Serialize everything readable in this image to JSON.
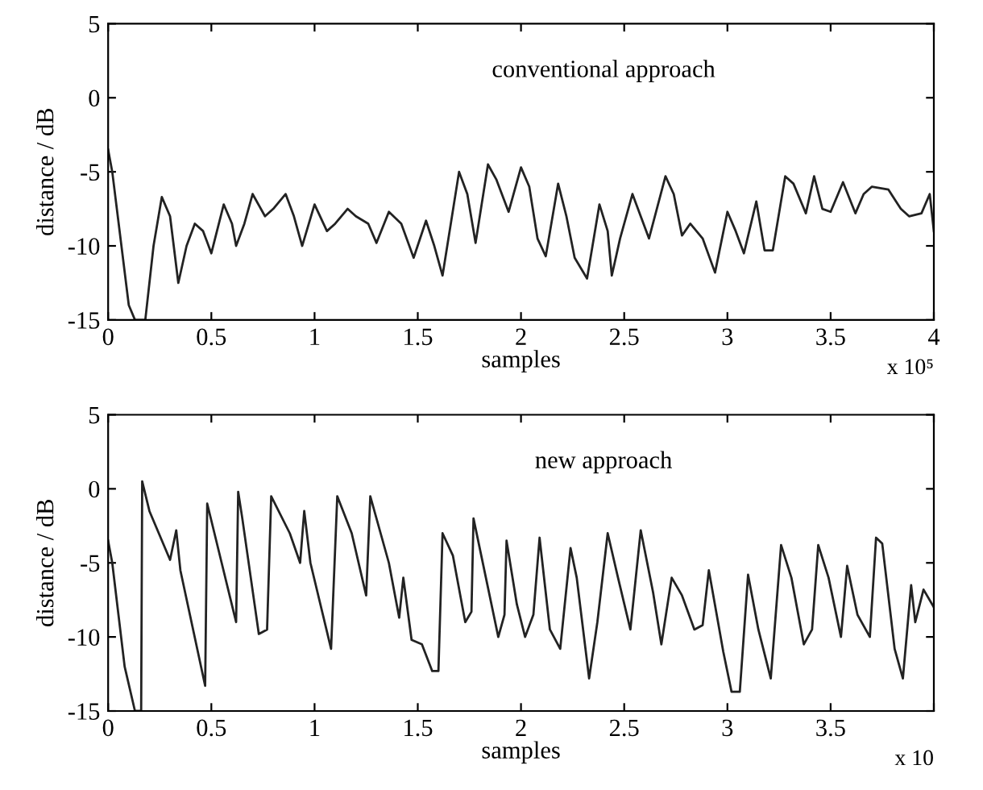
{
  "chart_data": [
    {
      "type": "line",
      "xlabel": "samples",
      "ylabel": "distance / dB",
      "annotations": [
        "conventional approach",
        "x 10⁵"
      ],
      "xlim": [
        0,
        4
      ],
      "ylim": [
        -15,
        5
      ],
      "xticks": [
        0,
        0.5,
        1,
        1.5,
        2,
        2.5,
        3,
        3.5,
        4
      ],
      "yticks": [
        -15,
        -10,
        -5,
        0,
        5
      ],
      "grid": false,
      "legend": false,
      "marker": "none",
      "line_style": "solid",
      "series": [
        {
          "color": "#222222",
          "x": [
            0,
            0.02,
            0.1,
            0.13,
            0.18,
            0.22,
            0.26,
            0.3,
            0.34,
            0.38,
            0.42,
            0.46,
            0.5,
            0.56,
            0.6,
            0.62,
            0.66,
            0.7,
            0.76,
            0.8,
            0.86,
            0.9,
            0.94,
            1.0,
            1.06,
            1.1,
            1.16,
            1.2,
            1.26,
            1.3,
            1.36,
            1.42,
            1.48,
            1.54,
            1.58,
            1.62,
            1.7,
            1.74,
            1.78,
            1.84,
            1.88,
            1.94,
            2.0,
            2.04,
            2.08,
            2.12,
            2.18,
            2.22,
            2.26,
            2.32,
            2.38,
            2.42,
            2.44,
            2.48,
            2.54,
            2.58,
            2.62,
            2.7,
            2.74,
            2.78,
            2.82,
            2.88,
            2.94,
            3.0,
            3.04,
            3.08,
            3.14,
            3.18,
            3.22,
            3.28,
            3.32,
            3.38,
            3.42,
            3.46,
            3.5,
            3.56,
            3.62,
            3.66,
            3.7,
            3.78,
            3.84,
            3.88,
            3.94,
            3.98,
            4.0
          ],
          "values": [
            -3.5,
            -5,
            -14,
            -15,
            -15,
            -10,
            -6.7,
            -8,
            -12.5,
            -10,
            -8.5,
            -9,
            -10.5,
            -7.2,
            -8.5,
            -10,
            -8.5,
            -6.5,
            -8,
            -7.5,
            -6.5,
            -8,
            -10,
            -7.2,
            -9,
            -8.5,
            -7.5,
            -8,
            -8.5,
            -9.8,
            -7.7,
            -8.5,
            -10.8,
            -8.3,
            -10,
            -12,
            -5,
            -6.5,
            -9.8,
            -4.5,
            -5.5,
            -7.7,
            -4.7,
            -6,
            -9.5,
            -10.7,
            -5.8,
            -8,
            -10.8,
            -12.2,
            -7.2,
            -9,
            -12,
            -9.5,
            -6.5,
            -8,
            -9.5,
            -5.3,
            -6.5,
            -9.3,
            -8.5,
            -9.5,
            -11.8,
            -7.7,
            -9,
            -10.5,
            -7,
            -10.3,
            -10.3,
            -5.3,
            -5.8,
            -7.8,
            -5.3,
            -7.5,
            -7.7,
            -5.7,
            -7.8,
            -6.5,
            -6,
            -6.2,
            -7.5,
            -8,
            -7.8,
            -6.5,
            -9
          ]
        }
      ]
    },
    {
      "type": "line",
      "xlabel": "samples",
      "ylabel": "distance / dB",
      "annotations": [
        "new approach",
        "x 10"
      ],
      "xlim": [
        0,
        4
      ],
      "ylim": [
        -15,
        5
      ],
      "xticks": [
        0,
        0.5,
        1,
        1.5,
        2,
        2.5,
        3,
        3.5,
        {
          "value": 4,
          "label": null
        }
      ],
      "yticks": [
        -15,
        -10,
        -5,
        0,
        5
      ],
      "grid": false,
      "legend": false,
      "marker": "none",
      "line_style": "solid",
      "series": [
        {
          "color": "#222222",
          "x": [
            0,
            0.02,
            0.08,
            0.13,
            0.16,
            0.165,
            0.2,
            0.3,
            0.33,
            0.35,
            0.47,
            0.48,
            0.55,
            0.62,
            0.63,
            0.65,
            0.73,
            0.77,
            0.79,
            0.88,
            0.93,
            0.95,
            0.98,
            1.08,
            1.11,
            1.18,
            1.25,
            1.27,
            1.36,
            1.41,
            1.43,
            1.47,
            1.52,
            1.57,
            1.6,
            1.62,
            1.67,
            1.73,
            1.76,
            1.77,
            1.83,
            1.89,
            1.92,
            1.93,
            1.98,
            2.02,
            2.06,
            2.09,
            2.14,
            2.19,
            2.24,
            2.27,
            2.33,
            2.37,
            2.42,
            2.47,
            2.53,
            2.58,
            2.64,
            2.68,
            2.73,
            2.78,
            2.84,
            2.88,
            2.91,
            2.98,
            3.02,
            3.06,
            3.1,
            3.15,
            3.21,
            3.26,
            3.31,
            3.37,
            3.41,
            3.44,
            3.49,
            3.55,
            3.58,
            3.63,
            3.69,
            3.72,
            3.75,
            3.81,
            3.85,
            3.89,
            3.91,
            3.95,
            4.0
          ],
          "values": [
            -3.5,
            -5,
            -12,
            -15,
            -15,
            0.5,
            -1.5,
            -4.8,
            -2.8,
            -5.5,
            -13.3,
            -1,
            -5,
            -9,
            -0.2,
            -2,
            -9.8,
            -9.5,
            -0.5,
            -3,
            -5,
            -1.5,
            -5,
            -10.8,
            -0.5,
            -3,
            -7.2,
            -0.5,
            -5,
            -8.7,
            -6,
            -10.2,
            -10.5,
            -12.3,
            -12.3,
            -3,
            -4.5,
            -9,
            -8.3,
            -2,
            -6,
            -10,
            -8.5,
            -3.5,
            -7.8,
            -10,
            -8.5,
            -3.3,
            -9.5,
            -10.8,
            -4,
            -6,
            -12.8,
            -9,
            -3,
            -6,
            -9.5,
            -2.8,
            -7,
            -10.5,
            -6,
            -7.2,
            -9.5,
            -9.2,
            -5.5,
            -11,
            -13.7,
            -13.7,
            -5.8,
            -9.5,
            -12.8,
            -3.8,
            -6,
            -10.5,
            -9.5,
            -3.8,
            -6,
            -10,
            -5.2,
            -8.5,
            -10,
            -3.3,
            -3.7,
            -10.8,
            -12.8,
            -6.5,
            -9,
            -6.8,
            -8
          ]
        }
      ]
    }
  ]
}
